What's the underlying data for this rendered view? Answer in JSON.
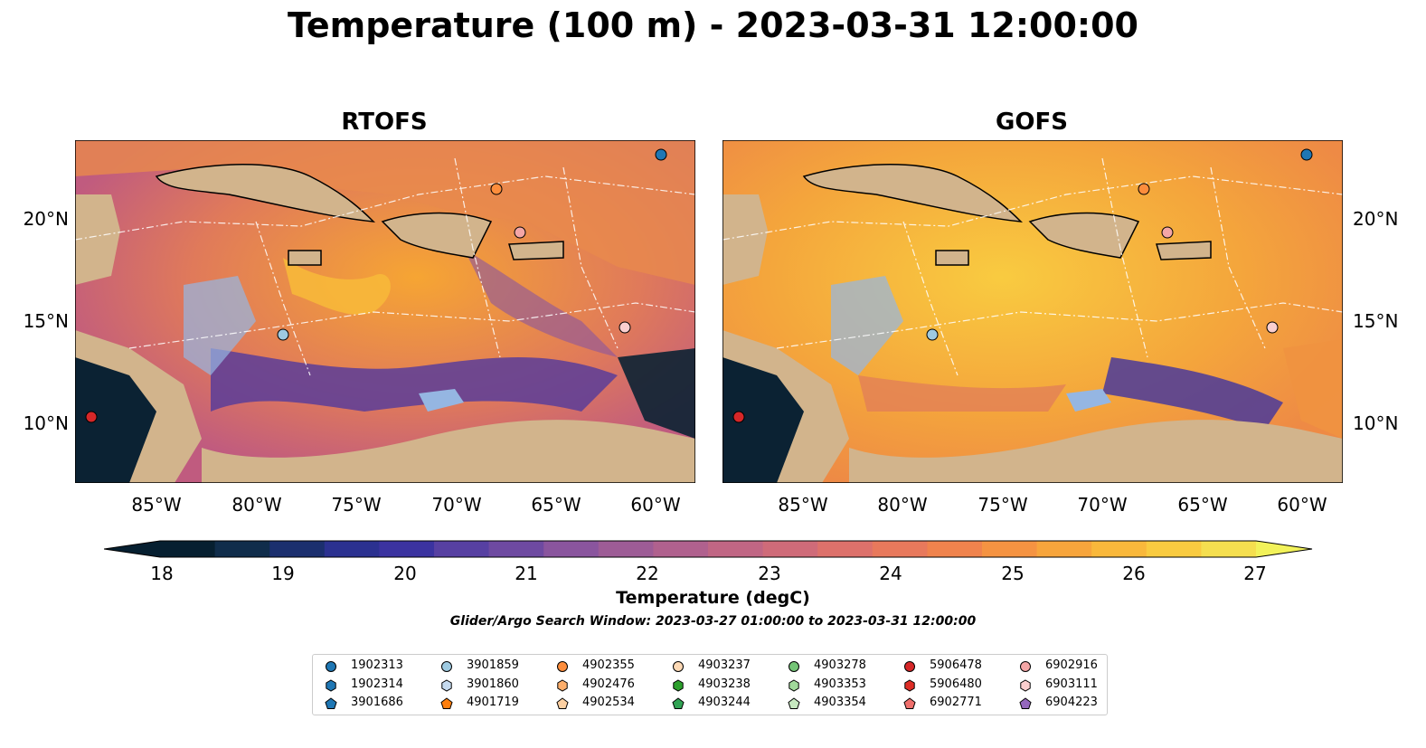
{
  "title": "Temperature (100 m) - 2023-03-31 12:00:00",
  "panels": [
    {
      "title": "RTOFS",
      "palette": {
        "warm": "#f6a533",
        "mid": "#c05b7f",
        "cool": "#5a3d99"
      }
    },
    {
      "title": "GOFS",
      "palette": {
        "warm": "#f8b83b",
        "mid": "#f09240",
        "cool": "#4a3a9a"
      }
    }
  ],
  "map": {
    "lat_ticks": [
      "20°N",
      "15°N",
      "10°N"
    ],
    "lon_ticks": [
      "85°W",
      "80°W",
      "75°W",
      "70°W",
      "65°W",
      "60°W"
    ],
    "land_color": "#d2b48c",
    "shallow_color": "#95b6e2",
    "deep_cold_color": "#0b2233"
  },
  "colorbar": {
    "label": "Temperature (degC)",
    "ticks": [
      "18",
      "19",
      "20",
      "21",
      "22",
      "23",
      "24",
      "25",
      "26",
      "27"
    ],
    "colors": [
      "#061f30",
      "#102d4b",
      "#1b2f6e",
      "#2b3190",
      "#3b33a0",
      "#5740a2",
      "#6e4aa1",
      "#8a559e",
      "#9d5c96",
      "#b0618e",
      "#c06684",
      "#cf6b79",
      "#dd716b",
      "#e8795c",
      "#f0834d",
      "#f59342",
      "#f7a53c",
      "#f9b83b",
      "#f9cb40",
      "#f5df4f"
    ]
  },
  "search_window": "Glider/Argo Search Window: 2023-03-27 01:00:00 to 2023-03-31 12:00:00",
  "legend": {
    "columns": [
      [
        {
          "id": "1902313",
          "shape": "circle",
          "color": "#1f77b4"
        },
        {
          "id": "1902314",
          "shape": "hexagon",
          "color": "#1f77b4"
        },
        {
          "id": "3901686",
          "shape": "pentagon",
          "color": "#1f77b4"
        }
      ],
      [
        {
          "id": "3901859",
          "shape": "circle",
          "color": "#9ecae1"
        },
        {
          "id": "3901860",
          "shape": "hexagon",
          "color": "#c6dbef"
        },
        {
          "id": "4901719",
          "shape": "pentagon",
          "color": "#ff7f0e"
        }
      ],
      [
        {
          "id": "4902355",
          "shape": "circle",
          "color": "#fd8d3c"
        },
        {
          "id": "4902476",
          "shape": "hexagon",
          "color": "#fdae6b"
        },
        {
          "id": "4902534",
          "shape": "pentagon",
          "color": "#fdd0a2"
        }
      ],
      [
        {
          "id": "4903237",
          "shape": "circle",
          "color": "#fdd9b5"
        },
        {
          "id": "4903238",
          "shape": "hexagon",
          "color": "#2ca02c"
        },
        {
          "id": "4903244",
          "shape": "pentagon",
          "color": "#31a354"
        }
      ],
      [
        {
          "id": "4903278",
          "shape": "circle",
          "color": "#74c476"
        },
        {
          "id": "4903353",
          "shape": "hexagon",
          "color": "#a1d99b"
        },
        {
          "id": "4903354",
          "shape": "pentagon",
          "color": "#c7e9c0"
        }
      ],
      [
        {
          "id": "5906478",
          "shape": "circle",
          "color": "#d62728"
        },
        {
          "id": "5906480",
          "shape": "hexagon",
          "color": "#de2d26"
        },
        {
          "id": "6902771",
          "shape": "pentagon",
          "color": "#ef6f6c"
        }
      ],
      [
        {
          "id": "6902916",
          "shape": "circle",
          "color": "#f4a6a6"
        },
        {
          "id": "6903111",
          "shape": "hexagon",
          "color": "#fbcfcf"
        },
        {
          "id": "6904223",
          "shape": "pentagon",
          "color": "#9467bd"
        }
      ]
    ]
  }
}
